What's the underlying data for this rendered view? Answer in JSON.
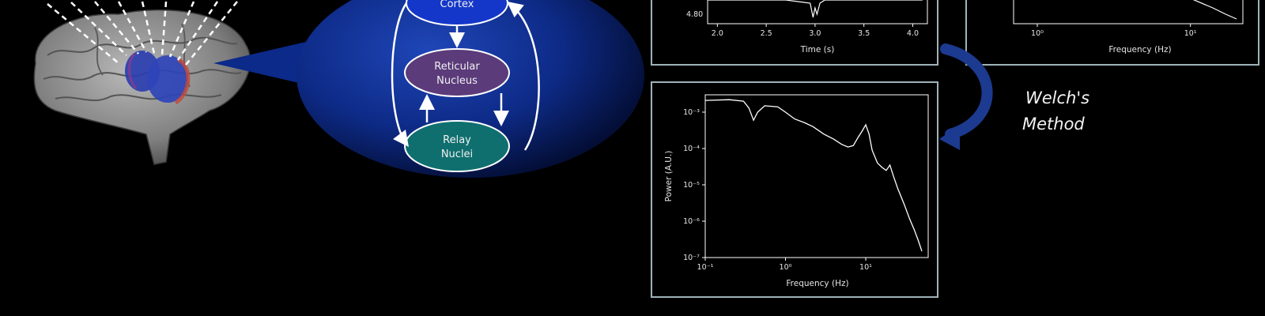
{
  "flow": {
    "cortex_label": "Cortex",
    "reticular_line1": "Reticular",
    "reticular_line2": "Nucleus",
    "relay_line1": "Relay",
    "relay_line2": "Nuclei",
    "method_line1": "Welch's",
    "method_line2": "Method"
  },
  "colors": {
    "background": "#000000",
    "callout": "#0b2a8a",
    "cortex": "#1537c9",
    "reticular": "#5b3b7a",
    "relay": "#0f6f6f",
    "panel_border": "#9fb3b8",
    "arrow_blue": "#1c3a8f"
  },
  "chart_data": [
    {
      "type": "line",
      "xlabel": "Time (s)",
      "ylabel": "",
      "xlim": [
        1.9,
        4.15
      ],
      "xticks": [
        "2.0",
        "2.5",
        "3.0",
        "3.5",
        "4.0"
      ],
      "yticks": [
        "4.80"
      ],
      "series": [
        {
          "x": [
            1.9,
            2.3,
            2.7,
            2.95,
            2.98,
            3.0,
            3.02,
            3.05,
            3.1,
            3.5,
            4.1
          ],
          "y": [
            4.95,
            4.95,
            4.95,
            4.93,
            4.84,
            4.9,
            4.86,
            4.93,
            4.95,
            4.95,
            4.95
          ]
        }
      ]
    },
    {
      "type": "line",
      "xlabel": "Frequency (Hz)",
      "ylabel": "",
      "xscale": "log",
      "xticks": [
        "10⁰",
        "10¹"
      ],
      "series": [
        {
          "x": [
            10,
            14,
            17,
            20
          ],
          "y": [
            0.8,
            0.5,
            0.3,
            0.15
          ]
        }
      ]
    },
    {
      "type": "line",
      "xlabel": "Frequency (Hz)",
      "ylabel": "Power (A.U.)",
      "xscale": "log",
      "yscale": "log",
      "xlim": [
        0.1,
        60
      ],
      "ylim": [
        1e-07,
        0.003
      ],
      "xticks": [
        "10⁻¹",
        "10⁰",
        "10¹"
      ],
      "yticks": [
        "10⁻³",
        "10⁻⁴",
        "10⁻⁵",
        "10⁻⁶",
        "10⁻⁷"
      ],
      "series": [
        {
          "x": [
            0.1,
            0.2,
            0.3,
            0.35,
            0.4,
            0.45,
            0.55,
            0.8,
            1.0,
            1.3,
            1.7,
            2.2,
            3,
            4,
            5,
            6,
            7,
            8,
            9,
            10,
            11,
            12,
            14,
            16,
            18,
            20,
            22,
            25,
            30,
            35,
            40,
            45,
            50
          ],
          "y": [
            0.0021,
            0.0022,
            0.002,
            0.0013,
            0.0006,
            0.001,
            0.0015,
            0.0014,
            0.001,
            0.00065,
            0.00052,
            0.0004,
            0.00025,
            0.00018,
            0.00013,
            0.00011,
            0.00012,
            0.0002,
            0.0003,
            0.00045,
            0.00025,
            9e-05,
            4e-05,
            3e-05,
            2.5e-05,
            3.5e-05,
            1.8e-05,
            8e-06,
            3e-06,
            1.2e-06,
            6e-07,
            3e-07,
            1.5e-07
          ]
        }
      ]
    }
  ]
}
